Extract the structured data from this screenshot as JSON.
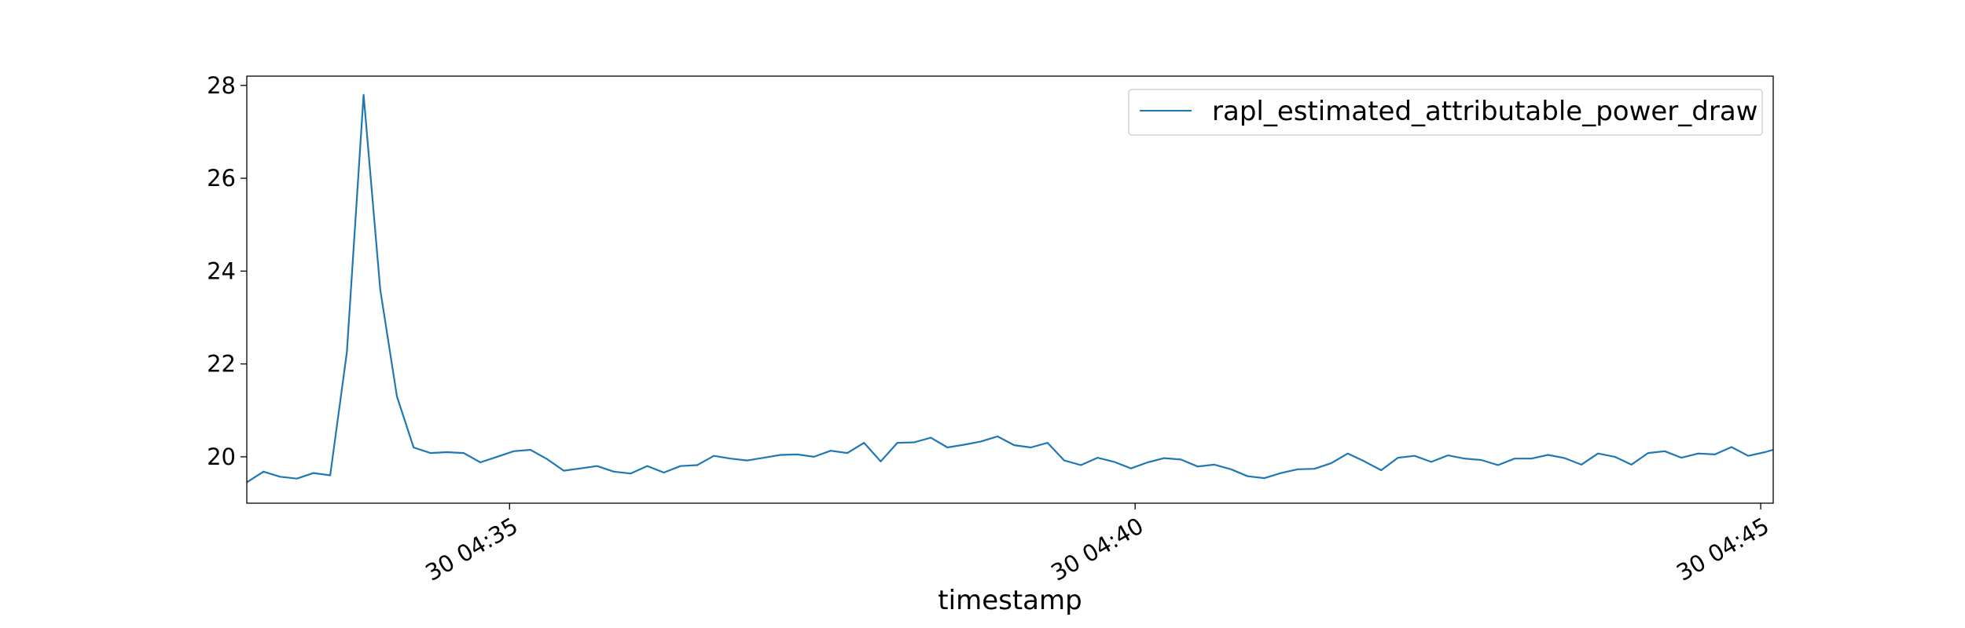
{
  "chart_data": {
    "type": "line",
    "title": "",
    "xlabel": "timestamp",
    "ylabel": "",
    "x_format": "time",
    "xlim": [
      "04:32:54",
      "04:45:06"
    ],
    "ylim": [
      19.0,
      28.2
    ],
    "x_ticks": [
      {
        "value": "04:35",
        "label": "30 04:35"
      },
      {
        "value": "04:40",
        "label": "30 04:40"
      },
      {
        "value": "04:45",
        "label": "30 04:45"
      }
    ],
    "y_ticks": [
      20,
      22,
      24,
      26,
      28
    ],
    "grid": false,
    "legend": {
      "position": "top-right"
    },
    "series": [
      {
        "name": "rapl_estimated_attributable_power_draw",
        "color": "#1f77b4",
        "x": [
          "04:32:54",
          "04:33:02",
          "04:33:10",
          "04:33:18",
          "04:33:26",
          "04:33:34",
          "04:33:42",
          "04:33:50",
          "04:33:58",
          "04:34:06",
          "04:34:14",
          "04:34:22",
          "04:34:30",
          "04:34:38",
          "04:34:46",
          "04:34:54",
          "04:35:02",
          "04:35:10",
          "04:35:18",
          "04:35:26",
          "04:35:34",
          "04:35:42",
          "04:35:50",
          "04:35:58",
          "04:36:06",
          "04:36:14",
          "04:36:22",
          "04:36:30",
          "04:36:38",
          "04:36:46",
          "04:36:54",
          "04:37:02",
          "04:37:10",
          "04:37:18",
          "04:37:26",
          "04:37:34",
          "04:37:42",
          "04:37:50",
          "04:37:58",
          "04:38:06",
          "04:38:14",
          "04:38:22",
          "04:38:30",
          "04:38:38",
          "04:38:46",
          "04:38:54",
          "04:39:02",
          "04:39:10",
          "04:39:18",
          "04:39:26",
          "04:39:34",
          "04:39:42",
          "04:39:50",
          "04:39:58",
          "04:40:06",
          "04:40:14",
          "04:40:22",
          "04:40:30",
          "04:40:38",
          "04:40:46",
          "04:40:54",
          "04:41:02",
          "04:41:10",
          "04:41:18",
          "04:41:26",
          "04:41:34",
          "04:41:42",
          "04:41:50",
          "04:41:58",
          "04:42:06",
          "04:42:14",
          "04:42:22",
          "04:42:30",
          "04:42:38",
          "04:42:46",
          "04:42:54",
          "04:43:02",
          "04:43:10",
          "04:43:18",
          "04:43:26",
          "04:43:34",
          "04:43:42",
          "04:43:50",
          "04:43:58",
          "04:44:06",
          "04:44:14",
          "04:44:22",
          "04:44:30",
          "04:44:38",
          "04:44:46",
          "04:44:54",
          "04:45:02",
          "04:45:06"
        ],
        "values": [
          19.45,
          19.68,
          19.57,
          19.53,
          19.65,
          19.6,
          22.25,
          27.8,
          23.6,
          21.3,
          20.2,
          20.08,
          20.1,
          20.08,
          19.88,
          20.0,
          20.12,
          20.15,
          19.95,
          19.7,
          19.75,
          19.8,
          19.68,
          19.64,
          19.8,
          19.66,
          19.8,
          19.82,
          20.02,
          19.96,
          19.92,
          19.98,
          20.04,
          20.05,
          20.0,
          20.13,
          20.08,
          20.3,
          19.9,
          20.3,
          20.31,
          20.41,
          20.2,
          20.26,
          20.33,
          20.44,
          20.25,
          20.2,
          20.3,
          19.92,
          19.82,
          19.98,
          19.89,
          19.75,
          19.88,
          19.97,
          19.94,
          19.79,
          19.83,
          19.73,
          19.58,
          19.54,
          19.65,
          19.73,
          19.74,
          19.86,
          20.07,
          19.9,
          19.71,
          19.98,
          20.02,
          19.89,
          20.03,
          19.96,
          19.93,
          19.82,
          19.96,
          19.96,
          20.04,
          19.97,
          19.83,
          20.07,
          20.0,
          19.83,
          20.08,
          20.12,
          19.98,
          20.07,
          20.05,
          20.21,
          20.02,
          20.1,
          20.15
        ]
      }
    ]
  }
}
